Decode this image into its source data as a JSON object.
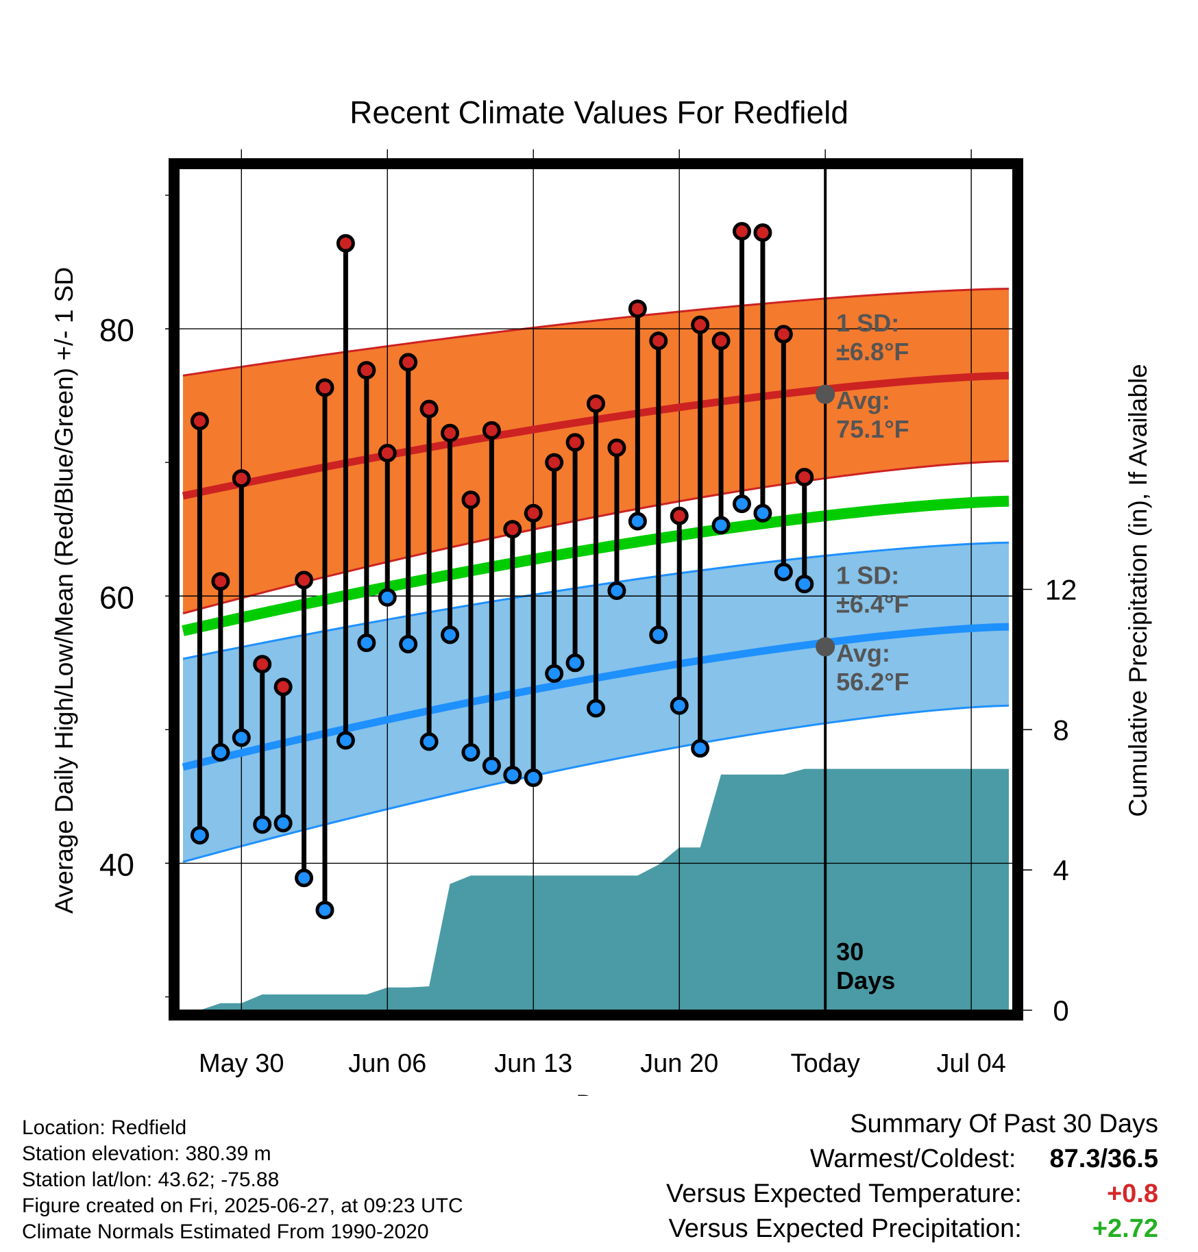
{
  "chart_data": {
    "type": "line",
    "title": "Recent Climate Values For Redfield",
    "xlabel": "Day",
    "ylabel": "Average Daily High/Low/Mean (Red/Blue/Green) +/- 1 SD",
    "y2label": "Cumulative Precipitation (in), If Available",
    "ylim": [
      29,
      92
    ],
    "y2lim": [
      0,
      24
    ],
    "yticks": [
      40,
      60,
      80
    ],
    "y2ticks": [
      0,
      4,
      8,
      12
    ],
    "x_tick_labels": [
      "May 30",
      "Jun 06",
      "Jun 13",
      "Jun 20",
      "Today",
      "Jul 04"
    ],
    "x_tick_dates": [
      "2025-05-30",
      "2025-06-06",
      "2025-06-13",
      "2025-06-20",
      "2025-06-27",
      "2025-07-04"
    ],
    "x_range": [
      "2025-05-27",
      "2025-07-06"
    ],
    "grid": true,
    "today": "2025-06-27",
    "window_label": [
      "30",
      "Days"
    ],
    "days": [
      "2025-05-28",
      "2025-05-29",
      "2025-05-30",
      "2025-05-31",
      "2025-06-01",
      "2025-06-02",
      "2025-06-03",
      "2025-06-04",
      "2025-06-05",
      "2025-06-06",
      "2025-06-07",
      "2025-06-08",
      "2025-06-09",
      "2025-06-10",
      "2025-06-11",
      "2025-06-12",
      "2025-06-13",
      "2025-06-14",
      "2025-06-15",
      "2025-06-16",
      "2025-06-17",
      "2025-06-18",
      "2025-06-19",
      "2025-06-20",
      "2025-06-21",
      "2025-06-22",
      "2025-06-23",
      "2025-06-24",
      "2025-06-25",
      "2025-06-26"
    ],
    "series": [
      {
        "name": "High",
        "color": "#cc2222",
        "values": [
          73.1,
          61.1,
          68.8,
          54.9,
          53.2,
          61.2,
          75.6,
          86.4,
          76.9,
          70.7,
          77.5,
          74.0,
          72.2,
          67.2,
          72.4,
          65.0,
          66.2,
          70.0,
          71.5,
          74.4,
          71.1,
          81.5,
          79.1,
          66.0,
          80.3,
          79.1,
          87.3,
          87.2,
          79.6,
          68.9
        ]
      },
      {
        "name": "Low",
        "color": "#2299ee",
        "values": [
          42.1,
          48.3,
          49.4,
          42.9,
          43.0,
          38.9,
          36.5,
          49.2,
          56.5,
          59.9,
          56.4,
          49.1,
          57.1,
          48.3,
          47.3,
          46.6,
          46.4,
          54.2,
          55.0,
          51.6,
          60.4,
          65.6,
          57.1,
          51.8,
          48.6,
          65.3,
          66.9,
          66.2,
          61.8,
          60.9
        ]
      }
    ],
    "normals": {
      "high_mean": [
        67.5,
        76.5
      ],
      "high_sd_upper": [
        76.5,
        83.0
      ],
      "high_sd_lower": [
        58.7,
        70.1
      ],
      "low_mean": [
        47.2,
        57.7
      ],
      "low_sd_upper": [
        55.3,
        64.0
      ],
      "low_sd_lower": [
        40.1,
        51.8
      ],
      "mean": [
        57.4,
        67.1
      ]
    },
    "precip_x": [
      "2025-05-27",
      "2025-05-28",
      "2025-05-29",
      "2025-05-30",
      "2025-05-31",
      "2025-06-01",
      "2025-06-02",
      "2025-06-03",
      "2025-06-04",
      "2025-06-05",
      "2025-06-06",
      "2025-06-07",
      "2025-06-08",
      "2025-06-09",
      "2025-06-10",
      "2025-06-11",
      "2025-06-12",
      "2025-06-13",
      "2025-06-14",
      "2025-06-15",
      "2025-06-16",
      "2025-06-17",
      "2025-06-18",
      "2025-06-19",
      "2025-06-20",
      "2025-06-21",
      "2025-06-22",
      "2025-06-23",
      "2025-06-24",
      "2025-06-25",
      "2025-06-26",
      "2025-06-27",
      "2025-06-28",
      "2025-07-06"
    ],
    "precip_cum": [
      0,
      0,
      0.2,
      0.2,
      0.45,
      0.45,
      0.45,
      0.45,
      0.45,
      0.45,
      0.65,
      0.65,
      0.68,
      3.6,
      3.84,
      3.84,
      3.84,
      3.84,
      3.84,
      3.84,
      3.84,
      3.84,
      3.84,
      4.15,
      4.64,
      4.64,
      6.72,
      6.72,
      6.72,
      6.72,
      6.88,
      6.88,
      6.88,
      6.88
    ],
    "annotations": {
      "high_sd_label": [
        "1 SD:",
        "±6.8°F"
      ],
      "high_avg_label": [
        "Avg:",
        "75.1°F"
      ],
      "low_sd_label": [
        "1 SD:",
        "±6.4°F"
      ],
      "low_avg_label": [
        "Avg:",
        "56.2°F"
      ],
      "high_avg_today": 75.1,
      "low_avg_today": 56.2
    },
    "colors": {
      "high_band": "#f47a2e",
      "high_line": "#cc2222",
      "low_band": "#86c2ea",
      "low_line": "#1e90ff",
      "mean_line": "#00cc00",
      "precip": "#4a9ba5",
      "annotation": "#555555"
    }
  },
  "footer": {
    "location": "Location: Redfield",
    "elevation": "Station elevation: 380.39 m",
    "latlon": "Station lat/lon: 43.62; -75.88",
    "created": "Figure created on Fri, 2025-06-27, at 09:23 UTC",
    "normals": "Climate Normals Estimated From 1990-2020"
  },
  "summary": {
    "title": "Summary Of Past 30 Days",
    "warmest_label": "Warmest/Coldest:",
    "warmest_value": "87.3/36.5",
    "temp_label": "Versus Expected Temperature:",
    "temp_value": "+0.8",
    "precip_label": "Versus Expected Precipitation:",
    "precip_value": "+2.72"
  }
}
